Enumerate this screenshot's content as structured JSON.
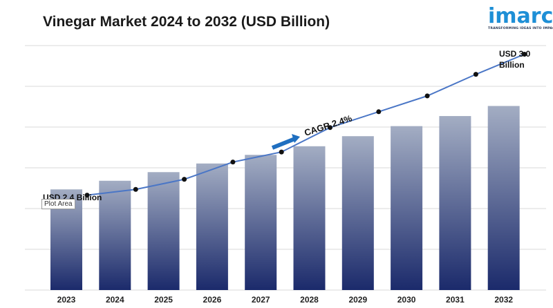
{
  "title": "Vinegar Market 2024 to 2032 (USD Billion)",
  "logo": {
    "word": "imarc",
    "tagline": "TRANSFORMING IDEAS INTO IMPACT",
    "color": "#1e8fd6"
  },
  "tooltip": "Plot Area",
  "chart_data": {
    "type": "bar",
    "categories": [
      "2023",
      "2024",
      "2025",
      "2026",
      "2027",
      "2028",
      "2029",
      "2030",
      "2031",
      "2032"
    ],
    "values": [
      2.4,
      2.46,
      2.52,
      2.58,
      2.64,
      2.7,
      2.77,
      2.84,
      2.91,
      2.98
    ],
    "trend_line": [
      2.36,
      2.4,
      2.47,
      2.59,
      2.66,
      2.83,
      2.94,
      3.05,
      3.2,
      3.34
    ],
    "ylim": [
      1.7,
      3.4
    ],
    "grid": true,
    "annotations": {
      "start": "USD 2.4 Billion",
      "end": [
        "USD 3.0",
        "Billion"
      ],
      "cagr": "CAGR 2.4%"
    },
    "colors": {
      "bar_top": "#a3adc3",
      "bar_bottom": "#1b2a6b",
      "line": "#4a76c6",
      "arrow": "#1f6fc0"
    }
  }
}
